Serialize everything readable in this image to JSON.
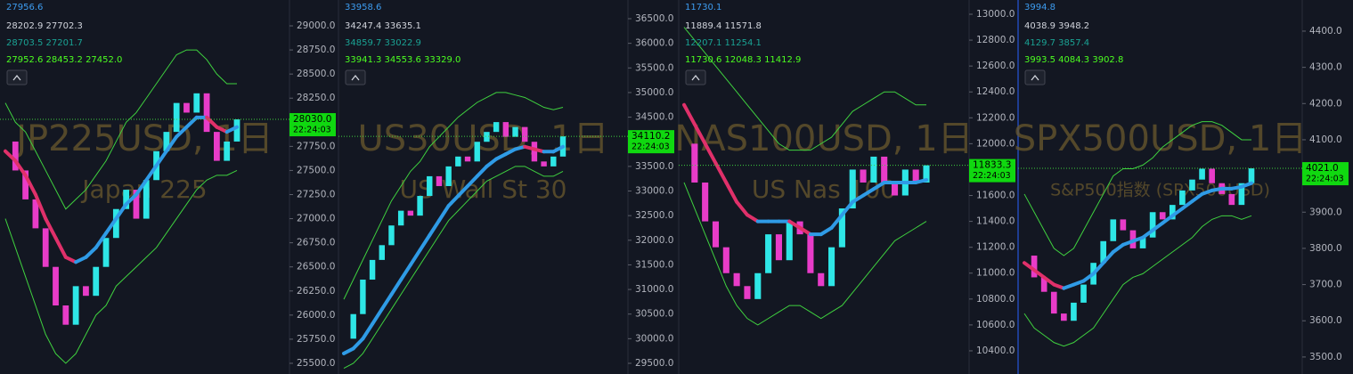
{
  "chart_data": [
    {
      "type": "candlestick",
      "title": "JP225USD, 1日",
      "subtitle": "Japan 225",
      "legend_lines": [
        "27956.6",
        "28202.9 27702.3",
        "28703.5 27201.7",
        "27952.6 28453.2 27452.0"
      ],
      "ylim": [
        25389,
        29268
      ],
      "yticks": [
        {
          "value": 25500,
          "label": "25500.0"
        },
        {
          "value": 25750,
          "label": "25750.0"
        },
        {
          "value": 26000,
          "label": "26000.0"
        },
        {
          "value": 26250,
          "label": "26250.0"
        },
        {
          "value": 26500,
          "label": "26500.0"
        },
        {
          "value": 26750,
          "label": "26750.0"
        },
        {
          "value": 27000,
          "label": "27000.0"
        },
        {
          "value": 27250,
          "label": "27250.0"
        },
        {
          "value": 27500,
          "label": "27500.0"
        },
        {
          "value": 27750,
          "label": "27750.0"
        },
        {
          "value": 28000,
          "label": "28000.0"
        },
        {
          "value": 28250,
          "label": "28250.0"
        },
        {
          "value": 28500,
          "label": "28500.0"
        },
        {
          "value": 28750,
          "label": "28750.0"
        },
        {
          "value": 29000,
          "label": "29000.0"
        }
      ],
      "close": [
        27800,
        27500,
        27200,
        26900,
        26500,
        26100,
        25900,
        26300,
        26200,
        26500,
        26800,
        27100,
        27300,
        27000,
        27400,
        27700,
        27900,
        28200,
        28100,
        28300,
        27900,
        27600,
        27800,
        28030
      ],
      "ma": [
        27700,
        27600,
        27450,
        27250,
        27000,
        26800,
        26600,
        26550,
        26600,
        26700,
        26850,
        27000,
        27150,
        27250,
        27400,
        27550,
        27700,
        27850,
        27950,
        28050,
        28050,
        27950,
        27900,
        27950
      ],
      "upper": [
        28200,
        28000,
        27900,
        27700,
        27500,
        27300,
        27100,
        27200,
        27300,
        27450,
        27600,
        27800,
        28000,
        28100,
        28250,
        28400,
        28550,
        28700,
        28750,
        28750,
        28650,
        28500,
        28400,
        28400
      ],
      "lower": [
        27000,
        26700,
        26400,
        26100,
        25800,
        25600,
        25500,
        25600,
        25800,
        26000,
        26100,
        26300,
        26400,
        26500,
        26600,
        26700,
        26850,
        27000,
        27150,
        27300,
        27400,
        27450,
        27450,
        27500
      ],
      "last_price": {
        "value": 28030,
        "label": "28030.0"
      },
      "time": "22:24:03"
    },
    {
      "type": "candlestick",
      "title": "US30USD, 1日",
      "subtitle": "US Wall St 30",
      "legend_lines": [
        "33958.6",
        "34247.4 33635.1",
        "34859.7 33022.9",
        "33941.3 34553.6 33329.0"
      ],
      "ylim": [
        29283,
        36880
      ],
      "yticks": [
        {
          "value": 29500,
          "label": "29500.0"
        },
        {
          "value": 30000,
          "label": "30000.0"
        },
        {
          "value": 30500,
          "label": "30500.0"
        },
        {
          "value": 31000,
          "label": "31000.0"
        },
        {
          "value": 31500,
          "label": "31500.0"
        },
        {
          "value": 32000,
          "label": "32000.0"
        },
        {
          "value": 32500,
          "label": "32500.0"
        },
        {
          "value": 33000,
          "label": "33000.0"
        },
        {
          "value": 33500,
          "label": "33500.0"
        },
        {
          "value": 34000,
          "label": "34000.0"
        },
        {
          "value": 34500,
          "label": "34500.0"
        },
        {
          "value": 35000,
          "label": "35000.0"
        },
        {
          "value": 35500,
          "label": "35500.0"
        },
        {
          "value": 36000,
          "label": "36000.0"
        },
        {
          "value": 36500,
          "label": "36500.0"
        }
      ],
      "close": [
        30000,
        30500,
        31200,
        31600,
        31900,
        32300,
        32600,
        32500,
        32900,
        33300,
        33100,
        33500,
        33700,
        33600,
        34000,
        34200,
        34400,
        34100,
        34300,
        34000,
        33600,
        33500,
        33700,
        34110
      ],
      "ma": [
        29700,
        29800,
        30000,
        30300,
        30600,
        30900,
        31200,
        31500,
        31800,
        32100,
        32400,
        32700,
        32900,
        33100,
        33300,
        33500,
        33650,
        33750,
        33850,
        33900,
        33850,
        33800,
        33800,
        33900
      ],
      "upper": [
        30800,
        31200,
        31600,
        32000,
        32400,
        32800,
        33100,
        33400,
        33600,
        33900,
        34100,
        34300,
        34500,
        34650,
        34800,
        34900,
        35000,
        35000,
        34950,
        34900,
        34800,
        34700,
        34650,
        34700
      ],
      "lower": [
        29400,
        29500,
        29700,
        30000,
        30300,
        30600,
        30900,
        31200,
        31500,
        31800,
        32100,
        32400,
        32600,
        32800,
        33000,
        33200,
        33300,
        33400,
        33500,
        33500,
        33400,
        33300,
        33300,
        33400
      ],
      "last_price": {
        "value": 34110.2,
        "label": "34110.2"
      },
      "time": "22:24:03"
    },
    {
      "type": "candlestick",
      "title": "NAS100USD, 1日",
      "subtitle": "US Nas 100",
      "legend_lines": [
        "11730.1",
        "11889.4 11571.8",
        "12207.1 11254.1",
        "11730.6 12048.3 11412.9"
      ],
      "ylim": [
        10221,
        13110
      ],
      "yticks": [
        {
          "value": 10400,
          "label": "10400.0"
        },
        {
          "value": 10600,
          "label": "10600.0"
        },
        {
          "value": 10800,
          "label": "10800.0"
        },
        {
          "value": 11000,
          "label": "11000.0"
        },
        {
          "value": 11200,
          "label": "11200.0"
        },
        {
          "value": 11400,
          "label": "11400.0"
        },
        {
          "value": 11600,
          "label": "11600.0"
        },
        {
          "value": 11800,
          "label": "11800.0"
        },
        {
          "value": 12000,
          "label": "12000.0"
        },
        {
          "value": 12200,
          "label": "12200.0"
        },
        {
          "value": 12400,
          "label": "12400.0"
        },
        {
          "value": 12600,
          "label": "12600.0"
        },
        {
          "value": 12800,
          "label": "12800.0"
        },
        {
          "value": 13000,
          "label": "13000.0"
        }
      ],
      "close": [
        12000,
        11700,
        11400,
        11200,
        11000,
        10900,
        10800,
        11000,
        11300,
        11100,
        11400,
        11300,
        11000,
        10900,
        11200,
        11500,
        11800,
        11700,
        11900,
        11700,
        11600,
        11800,
        11700,
        11833
      ],
      "ma": [
        12300,
        12150,
        12000,
        11850,
        11700,
        11550,
        11450,
        11400,
        11400,
        11400,
        11400,
        11350,
        11300,
        11300,
        11350,
        11450,
        11550,
        11600,
        11650,
        11700,
        11700,
        11700,
        11700,
        11720
      ],
      "upper": [
        12900,
        12800,
        12700,
        12600,
        12500,
        12400,
        12300,
        12200,
        12100,
        12000,
        11950,
        11950,
        11950,
        12000,
        12050,
        12150,
        12250,
        12300,
        12350,
        12400,
        12400,
        12350,
        12300,
        12300
      ],
      "lower": [
        11700,
        11500,
        11300,
        11100,
        10900,
        10750,
        10650,
        10600,
        10650,
        10700,
        10750,
        10750,
        10700,
        10650,
        10700,
        10750,
        10850,
        10950,
        11050,
        11150,
        11250,
        11300,
        11350,
        11400
      ],
      "last_price": {
        "value": 11833.3,
        "label": "11833.3"
      },
      "time": "22:24:03"
    },
    {
      "type": "candlestick",
      "title": "SPX500USD, 1日",
      "subtitle": "S&P500指数 (SPX500USD)",
      "legend_lines": [
        "3994.8",
        "4038.9 3948.2",
        "4129.7 3857.4",
        "3993.5 4084.3 3902.8"
      ],
      "ylim": [
        3453,
        4486
      ],
      "yticks": [
        {
          "value": 3500,
          "label": "3500.0"
        },
        {
          "value": 3600,
          "label": "3600.0"
        },
        {
          "value": 3700,
          "label": "3700.0"
        },
        {
          "value": 3800,
          "label": "3800.0"
        },
        {
          "value": 3900,
          "label": "3900.0"
        },
        {
          "value": 4000,
          "label": "4000.0"
        },
        {
          "value": 4100,
          "label": "4100.0"
        },
        {
          "value": 4200,
          "label": "4200.0"
        },
        {
          "value": 4300,
          "label": "4300.0"
        },
        {
          "value": 4400,
          "label": "4400.0"
        }
      ],
      "close": [
        3780,
        3720,
        3680,
        3620,
        3600,
        3650,
        3700,
        3760,
        3820,
        3880,
        3850,
        3800,
        3830,
        3900,
        3880,
        3920,
        3960,
        3990,
        4020,
        3980,
        3950,
        3920,
        3980,
        4021
      ],
      "ma": [
        3760,
        3740,
        3720,
        3700,
        3690,
        3700,
        3710,
        3730,
        3760,
        3790,
        3810,
        3820,
        3830,
        3850,
        3870,
        3890,
        3910,
        3930,
        3950,
        3960,
        3965,
        3965,
        3970,
        3980
      ],
      "upper": [
        3950,
        3900,
        3850,
        3800,
        3780,
        3800,
        3850,
        3900,
        3950,
        4000,
        4020,
        4020,
        4030,
        4050,
        4080,
        4100,
        4120,
        4140,
        4150,
        4150,
        4140,
        4120,
        4100,
        4100
      ],
      "lower": [
        3620,
        3580,
        3560,
        3540,
        3530,
        3540,
        3560,
        3580,
        3620,
        3660,
        3700,
        3720,
        3730,
        3750,
        3770,
        3790,
        3810,
        3830,
        3860,
        3880,
        3890,
        3890,
        3880,
        3890
      ],
      "last_price": {
        "value": 4021,
        "label": "4021.0"
      },
      "time": "22:24:03"
    }
  ]
}
